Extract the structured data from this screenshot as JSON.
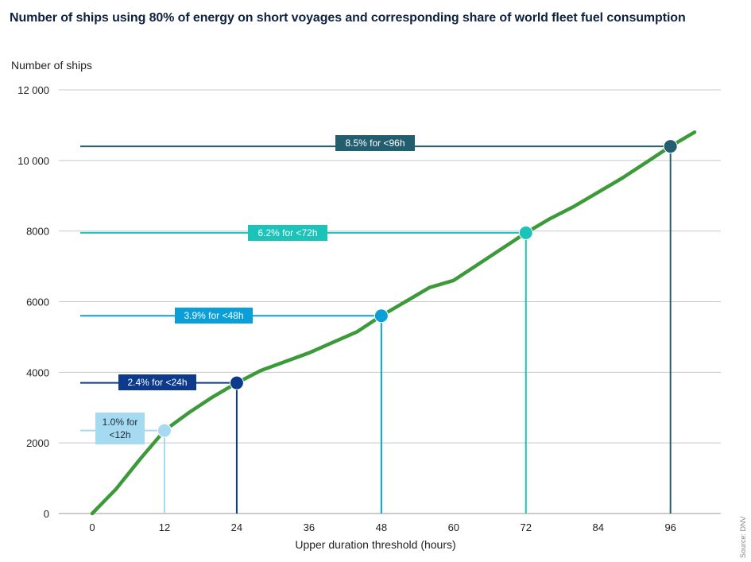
{
  "title": "Number of ships using 80% of energy on short voyages and corresponding share of world fleet fuel consumption",
  "source": "Source: DNV",
  "chart_data": {
    "type": "line",
    "title": "Number of ships using 80% of energy on short voyages and corresponding share of world fleet fuel consumption",
    "xlabel": "Upper duration threshold (hours)",
    "ylabel": "Number of ships",
    "xlim": [
      0,
      100
    ],
    "ylim": [
      0,
      12000
    ],
    "x_ticks": [
      0,
      12,
      24,
      36,
      48,
      60,
      72,
      84,
      96
    ],
    "y_ticks": [
      0,
      2000,
      4000,
      6000,
      8000,
      10000,
      12000
    ],
    "y_tick_labels": [
      "0",
      "2000",
      "4000",
      "6000",
      "8000",
      "10 000",
      "12 000"
    ],
    "grid": true,
    "series": [
      {
        "color": "#3d9a3a",
        "x": [
          0,
          4,
          8,
          12,
          16,
          20,
          24,
          28,
          32,
          36,
          40,
          44,
          48,
          52,
          56,
          60,
          64,
          68,
          72,
          76,
          80,
          84,
          88,
          92,
          96,
          100
        ],
        "y": [
          0,
          700,
          1550,
          2350,
          2850,
          3300,
          3700,
          4050,
          4300,
          4550,
          4850,
          5150,
          5600,
          6000,
          6400,
          6600,
          7050,
          7500,
          7950,
          8350,
          8700,
          9100,
          9500,
          9950,
          10400,
          10800
        ]
      }
    ],
    "markers": [
      {
        "x": 12,
        "y": 2350,
        "label": "1.0% for <12h",
        "color": "#a6daf0",
        "text_color": "#1b2a3a"
      },
      {
        "x": 24,
        "y": 3700,
        "label": "2.4% for <24h",
        "color": "#0d3a8c",
        "text_color": "#ffffff"
      },
      {
        "x": 48,
        "y": 5600,
        "label": "3.9% for <48h",
        "color": "#0b9fd8",
        "text_color": "#ffffff"
      },
      {
        "x": 72,
        "y": 7950,
        "label": "6.2% for <72h",
        "color": "#1cc3b8",
        "text_color": "#ffffff"
      },
      {
        "x": 96,
        "y": 10400,
        "label": "8.5% for <96h",
        "color": "#225e70",
        "text_color": "#ffffff"
      }
    ]
  }
}
